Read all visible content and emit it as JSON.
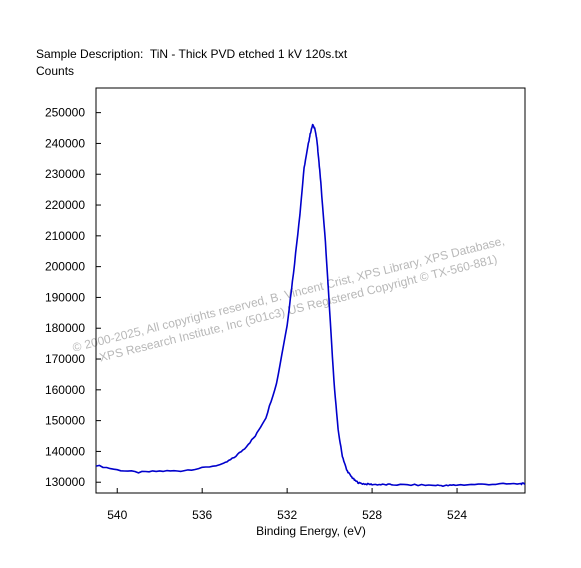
{
  "chart_data": {
    "type": "line",
    "title": "Sample Description:  TiN - Thick PVD etched 1 kV 120s.txt",
    "ylabel": "Counts",
    "xlabel": "Binding Energy, (eV)",
    "xlim": [
      541,
      520.8
    ],
    "ylim": [
      126500,
      258000
    ],
    "x_reversed": true,
    "grid": false,
    "x_ticks": [
      540,
      536,
      532,
      528,
      524
    ],
    "x_tick_labels": [
      "540",
      "536",
      "532",
      "528",
      "524"
    ],
    "y_ticks": [
      130000,
      140000,
      150000,
      160000,
      170000,
      180000,
      190000,
      200000,
      210000,
      220000,
      230000,
      240000,
      250000
    ],
    "y_tick_labels": [
      "130000",
      "140000",
      "150000",
      "160000",
      "170000",
      "180000",
      "190000",
      "200000",
      "210000",
      "220000",
      "230000",
      "240000",
      "250000"
    ],
    "series": [
      {
        "color": "#0000cc",
        "x": [
          541.0,
          540.0,
          539.0,
          538.0,
          537.0,
          536.0,
          535.0,
          534.5,
          534.0,
          533.5,
          533.0,
          532.5,
          532.0,
          531.7,
          531.4,
          531.2,
          531.0,
          530.9,
          530.8,
          530.7,
          530.6,
          530.5,
          530.4,
          530.2,
          530.0,
          529.8,
          529.6,
          529.4,
          529.2,
          529.0,
          528.8,
          528.6,
          528.3,
          528.0,
          527.5,
          527.0,
          526.0,
          525.0,
          524.5,
          524.0,
          523.0,
          522.0,
          521.0,
          520.8
        ],
        "y": [
          135500,
          134000,
          133200,
          133600,
          133700,
          134600,
          135900,
          138000,
          141000,
          145000,
          151000,
          162000,
          181000,
          198000,
          217000,
          232000,
          240000,
          243500,
          246000,
          245000,
          241000,
          234000,
          226000,
          208000,
          186000,
          163000,
          147000,
          138500,
          134000,
          132000,
          130500,
          129700,
          129400,
          129300,
          129200,
          129200,
          129100,
          129000,
          128900,
          129100,
          129300,
          129400,
          129500,
          129500
        ]
      }
    ]
  },
  "watermark": {
    "line1": "© 2000-2025,  All copyrights reserved,   B. Vincent Crist,  XPS Library, XPS Database,",
    "line2": "XPS Research Institute, Inc (501c3)    US Registered Copyright © TX-560-881)"
  }
}
